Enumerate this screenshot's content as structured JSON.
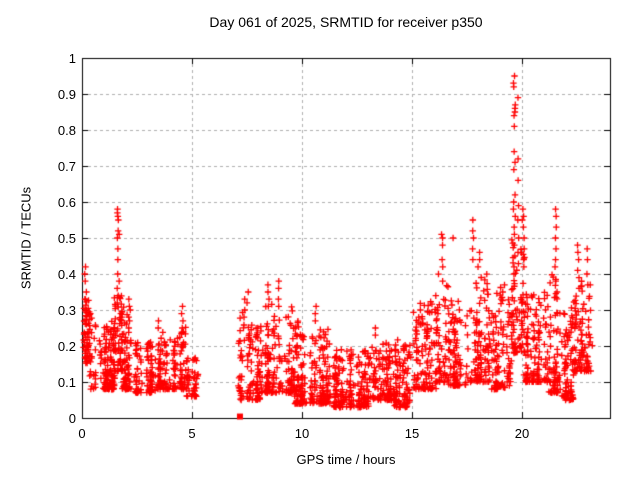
{
  "figure": {
    "background": "#ffffff",
    "text_color": "#000000"
  },
  "chart_data": {
    "type": "scatter",
    "title": "Day 061 of 2025, SRMTID for receiver p350",
    "xlabel": "GPS time / hours",
    "ylabel": "SRMTID / TECUs",
    "xlim": [
      0,
      24
    ],
    "ylim": [
      0,
      1
    ],
    "xticks": [
      0,
      5,
      10,
      15,
      20
    ],
    "xtick_labels": [
      "0",
      "5",
      "10",
      "15",
      "20"
    ],
    "yticks": [
      0,
      0.1,
      0.2,
      0.3,
      0.4,
      0.5,
      0.6,
      0.7,
      0.8,
      0.9,
      1
    ],
    "ytick_labels": [
      "0",
      "0.1",
      "0.2",
      "0.3",
      "0.4",
      "0.5",
      "0.6",
      "0.7",
      "0.8",
      "0.9",
      "1"
    ],
    "grid": true,
    "grid_color": "#b0b0b0",
    "border_color": "#000000",
    "legend": "none",
    "marker": "plus",
    "marker_color": "#ff0000",
    "seed": 61,
    "data_gaps": [
      [
        5.25,
        7.15
      ]
    ],
    "special_markers": [
      {
        "marker": "square",
        "x": 7.18,
        "y": 0.004
      }
    ],
    "segments": [
      {
        "x0": 0.0,
        "x1": 0.45,
        "n": 60,
        "ylo": 0.15,
        "yhi": 0.33,
        "bias": 1.5
      },
      {
        "x0": 0.3,
        "x1": 1.5,
        "n": 150,
        "ylo": 0.08,
        "yhi": 0.27,
        "bias": 2.2
      },
      {
        "x0": 1.5,
        "x1": 1.85,
        "n": 60,
        "ylo": 0.13,
        "yhi": 0.34,
        "bias": 1.6
      },
      {
        "x0": 1.85,
        "x1": 2.45,
        "n": 70,
        "ylo": 0.08,
        "yhi": 0.3,
        "bias": 2.2
      },
      {
        "x0": 2.45,
        "x1": 3.3,
        "n": 90,
        "ylo": 0.07,
        "yhi": 0.22,
        "bias": 2.0
      },
      {
        "x0": 3.3,
        "x1": 4.25,
        "n": 90,
        "ylo": 0.08,
        "yhi": 0.24,
        "bias": 2.2
      },
      {
        "x0": 4.25,
        "x1": 4.75,
        "n": 50,
        "ylo": 0.08,
        "yhi": 0.26,
        "bias": 2.0
      },
      {
        "x0": 4.75,
        "x1": 5.25,
        "n": 45,
        "ylo": 0.06,
        "yhi": 0.18,
        "bias": 1.8
      },
      {
        "x0": 7.15,
        "x1": 7.7,
        "n": 60,
        "ylo": 0.05,
        "yhi": 0.3,
        "bias": 1.8
      },
      {
        "x0": 7.7,
        "x1": 8.3,
        "n": 60,
        "ylo": 0.05,
        "yhi": 0.26,
        "bias": 2.0
      },
      {
        "x0": 8.3,
        "x1": 9.6,
        "n": 140,
        "ylo": 0.07,
        "yhi": 0.32,
        "bias": 2.2
      },
      {
        "x0": 9.6,
        "x1": 10.45,
        "n": 100,
        "ylo": 0.04,
        "yhi": 0.27,
        "bias": 2.2
      },
      {
        "x0": 10.45,
        "x1": 11.35,
        "n": 110,
        "ylo": 0.04,
        "yhi": 0.25,
        "bias": 2.2
      },
      {
        "x0": 11.35,
        "x1": 13.05,
        "n": 190,
        "ylo": 0.03,
        "yhi": 0.19,
        "bias": 1.9
      },
      {
        "x0": 13.05,
        "x1": 14.1,
        "n": 110,
        "ylo": 0.05,
        "yhi": 0.21,
        "bias": 2.0
      },
      {
        "x0": 14.1,
        "x1": 15.05,
        "n": 100,
        "ylo": 0.03,
        "yhi": 0.22,
        "bias": 1.9
      },
      {
        "x0": 15.05,
        "x1": 16.1,
        "n": 110,
        "ylo": 0.08,
        "yhi": 0.33,
        "bias": 2.1
      },
      {
        "x0": 16.1,
        "x1": 16.65,
        "n": 60,
        "ylo": 0.1,
        "yhi": 0.4,
        "bias": 2.0
      },
      {
        "x0": 16.65,
        "x1": 17.55,
        "n": 95,
        "ylo": 0.09,
        "yhi": 0.33,
        "bias": 2.0
      },
      {
        "x0": 17.55,
        "x1": 18.6,
        "n": 110,
        "ylo": 0.1,
        "yhi": 0.4,
        "bias": 2.1
      },
      {
        "x0": 18.6,
        "x1": 19.55,
        "n": 100,
        "ylo": 0.08,
        "yhi": 0.37,
        "bias": 2.0
      },
      {
        "x0": 19.55,
        "x1": 20.1,
        "n": 70,
        "ylo": 0.18,
        "yhi": 0.5,
        "bias": 1.7
      },
      {
        "x0": 20.1,
        "x1": 21.25,
        "n": 130,
        "ylo": 0.1,
        "yhi": 0.36,
        "bias": 2.0
      },
      {
        "x0": 21.25,
        "x1": 21.8,
        "n": 65,
        "ylo": 0.07,
        "yhi": 0.4,
        "bias": 1.9
      },
      {
        "x0": 21.8,
        "x1": 22.35,
        "n": 75,
        "ylo": 0.05,
        "yhi": 0.33,
        "bias": 1.9
      },
      {
        "x0": 22.35,
        "x1": 23.15,
        "n": 95,
        "ylo": 0.13,
        "yhi": 0.38,
        "bias": 1.9
      }
    ],
    "peak_columns": [
      {
        "x": 0.15,
        "ys": [
          0.42,
          0.4,
          0.38,
          0.35,
          0.33
        ]
      },
      {
        "x": 1.65,
        "ys": [
          0.58,
          0.57,
          0.56,
          0.55,
          0.52,
          0.51,
          0.5,
          0.47,
          0.44,
          0.4,
          0.38,
          0.36,
          0.34,
          0.32
        ]
      },
      {
        "x": 2.15,
        "ys": [
          0.33,
          0.31,
          0.3,
          0.28,
          0.27,
          0.25
        ]
      },
      {
        "x": 3.45,
        "ys": [
          0.27,
          0.25
        ]
      },
      {
        "x": 4.55,
        "ys": [
          0.31,
          0.29,
          0.27,
          0.25
        ]
      },
      {
        "x": 7.35,
        "ys": [
          0.33,
          0.3,
          0.28
        ]
      },
      {
        "x": 7.55,
        "ys": [
          0.35,
          0.32
        ]
      },
      {
        "x": 8.5,
        "ys": [
          0.37,
          0.35,
          0.33,
          0.31
        ]
      },
      {
        "x": 8.95,
        "ys": [
          0.38,
          0.36,
          0.33,
          0.31
        ]
      },
      {
        "x": 10.6,
        "ys": [
          0.31,
          0.29,
          0.27
        ]
      },
      {
        "x": 13.3,
        "ys": [
          0.25,
          0.23
        ]
      },
      {
        "x": 15.35,
        "ys": [
          0.3,
          0.28
        ]
      },
      {
        "x": 16.35,
        "ys": [
          0.51,
          0.5,
          0.48,
          0.44,
          0.42,
          0.38
        ]
      },
      {
        "x": 16.9,
        "ys": [
          0.5
        ]
      },
      {
        "x": 17.8,
        "ys": [
          0.55,
          0.52,
          0.5,
          0.47,
          0.44
        ]
      },
      {
        "x": 18.05,
        "ys": [
          0.46,
          0.44,
          0.42
        ]
      },
      {
        "x": 19.1,
        "ys": [
          0.35,
          0.33
        ]
      },
      {
        "x": 19.65,
        "ys": [
          0.95,
          0.93,
          0.92,
          0.87,
          0.86,
          0.85,
          0.84,
          0.81,
          0.74,
          0.71,
          0.69,
          0.62,
          0.6,
          0.58,
          0.56,
          0.53,
          0.51,
          0.48,
          0.45,
          0.42,
          0.4
        ]
      },
      {
        "x": 19.8,
        "ys": [
          0.89,
          0.72,
          0.66,
          0.59,
          0.55,
          0.5,
          0.46
        ]
      },
      {
        "x": 20.05,
        "ys": [
          0.58,
          0.56,
          0.55,
          0.53,
          0.5,
          0.47,
          0.44,
          0.42
        ]
      },
      {
        "x": 21.55,
        "ys": [
          0.58,
          0.56,
          0.53,
          0.5,
          0.47,
          0.44,
          0.42,
          0.38,
          0.35
        ]
      },
      {
        "x": 22.55,
        "ys": [
          0.48,
          0.46,
          0.44,
          0.41,
          0.39,
          0.36
        ]
      },
      {
        "x": 22.95,
        "ys": [
          0.47,
          0.44,
          0.4,
          0.37
        ]
      }
    ]
  }
}
